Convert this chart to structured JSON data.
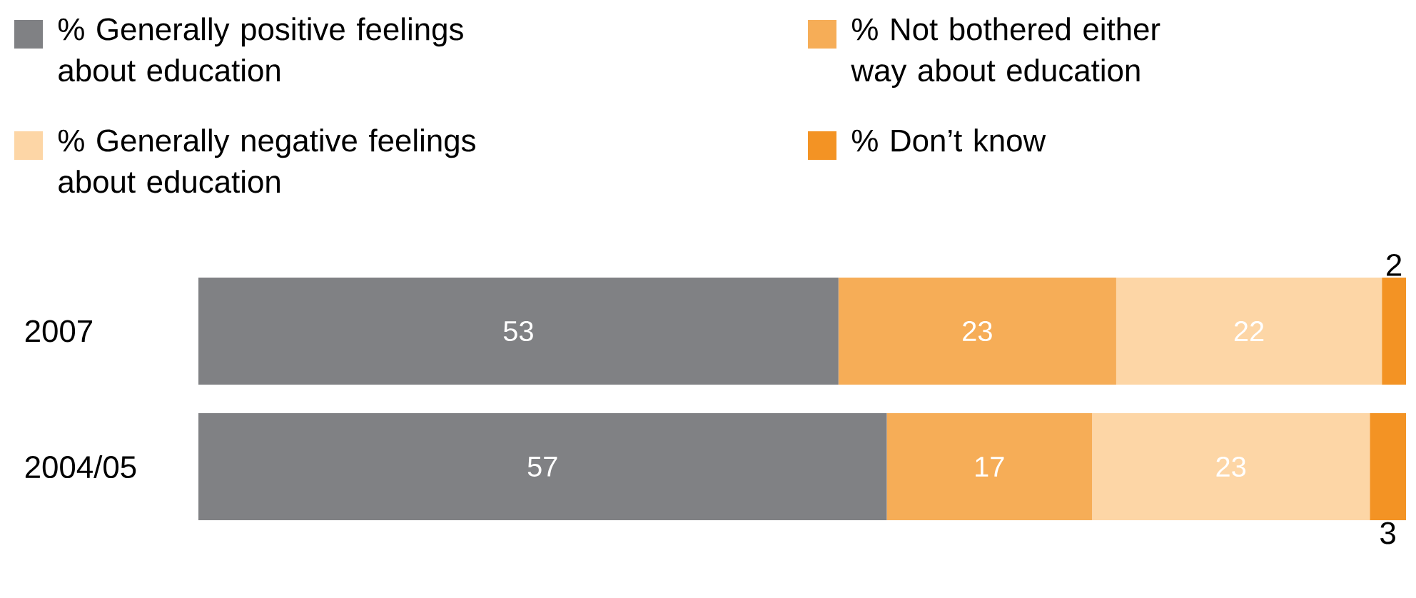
{
  "chart_data": {
    "type": "bar",
    "orientation": "horizontal",
    "stacked": true,
    "categories": [
      "2007",
      "2004/05"
    ],
    "series": [
      {
        "name": "% Generally positive feelings about education",
        "color": "#808184",
        "values": [
          53,
          57
        ]
      },
      {
        "name": "% Not bothered either way about education",
        "color": "#f6ad57",
        "values": [
          23,
          17
        ]
      },
      {
        "name": "% Generally negative feelings about education",
        "color": "#fdd6a6",
        "values": [
          22,
          23
        ]
      },
      {
        "name": "% Don’t know",
        "color": "#f39324",
        "values": [
          2,
          3
        ]
      }
    ],
    "data_labels": true,
    "legend": "top",
    "tick_labels": "y"
  }
}
